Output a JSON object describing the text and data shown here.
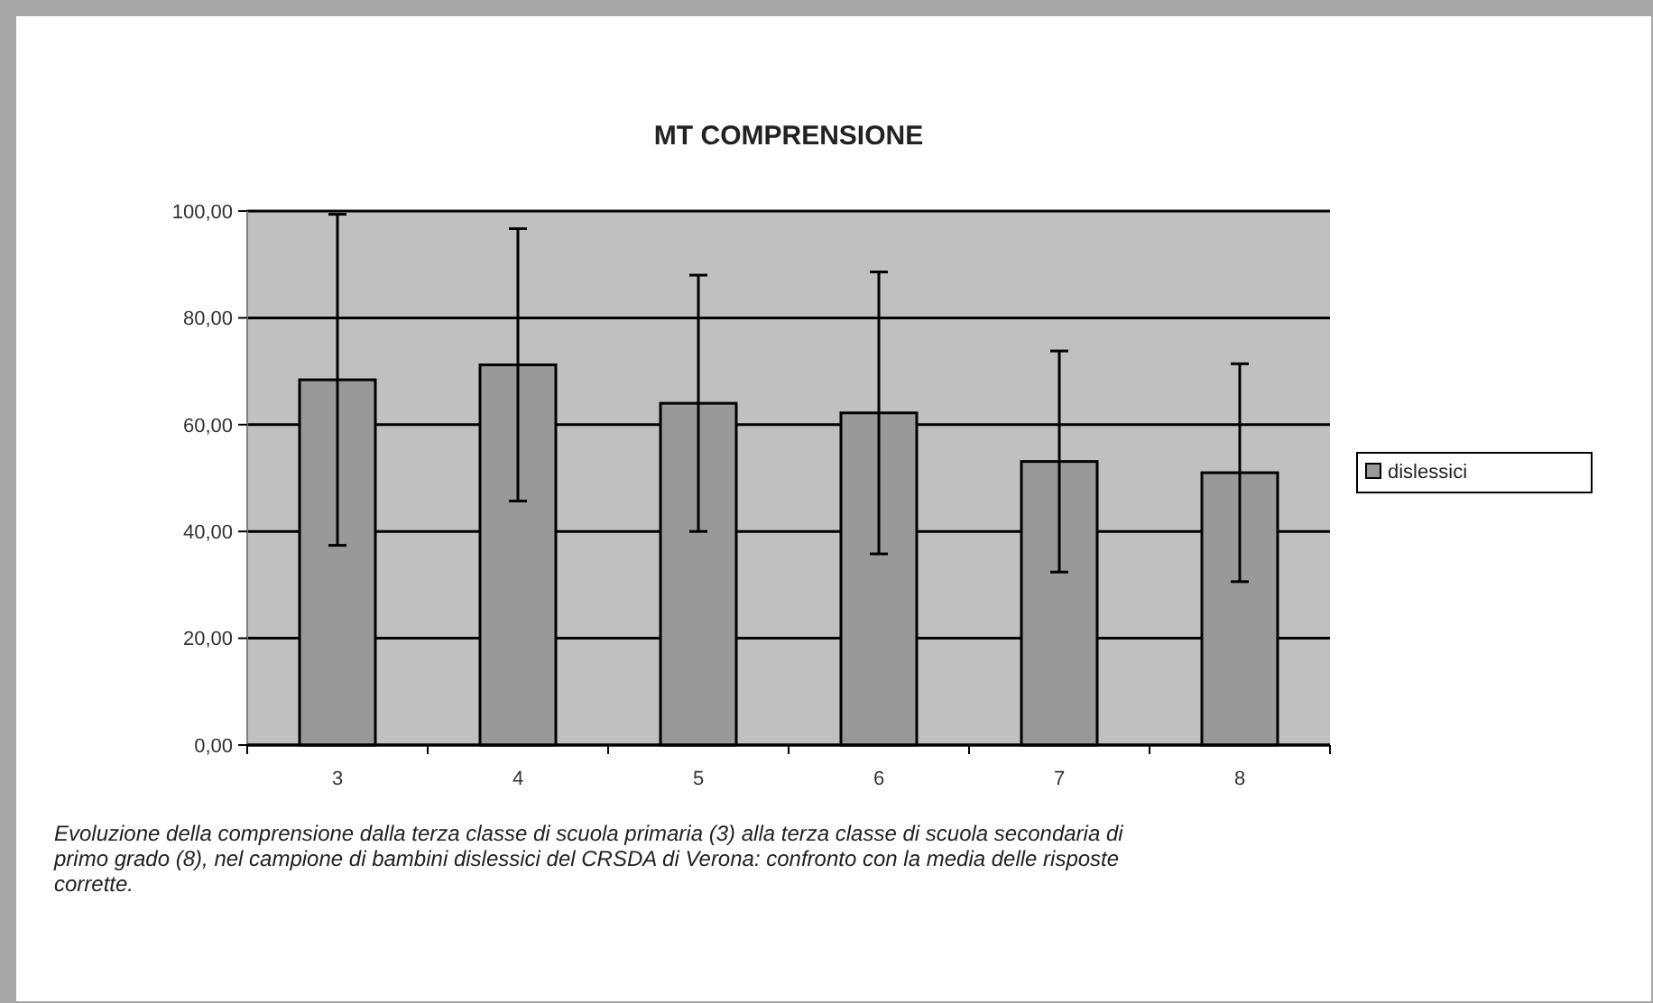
{
  "chart_data": {
    "type": "bar",
    "title": "MT COMPRENSIONE",
    "categories": [
      "3",
      "4",
      "5",
      "6",
      "7",
      "8"
    ],
    "series": [
      {
        "name": "dislessici",
        "color": "#999999",
        "values": [
          68.4,
          71.2,
          64.0,
          62.2,
          53.1,
          51.0
        ],
        "errors": [
          31,
          25.5,
          24,
          26.4,
          20.7,
          20.4
        ]
      }
    ],
    "ylim": [
      0,
      100
    ],
    "yticks": [
      {
        "value": 0,
        "label": "0,00"
      },
      {
        "value": 20,
        "label": "20,00"
      },
      {
        "value": 40,
        "label": "40,00"
      },
      {
        "value": 60,
        "label": "60,00"
      },
      {
        "value": 80,
        "label": "80,00"
      },
      {
        "value": 100,
        "label": "100,00"
      }
    ],
    "grid": "y",
    "legend": "right",
    "annotations": [
      "Evoluzione della comprensione dalla terza classe di scuola primaria (3) alla terza classe di scuola secondaria di primo grado (8), nel campione di bambini dislessici del CRSDA di Verona: confronto con la media delle risposte corrette."
    ]
  }
}
